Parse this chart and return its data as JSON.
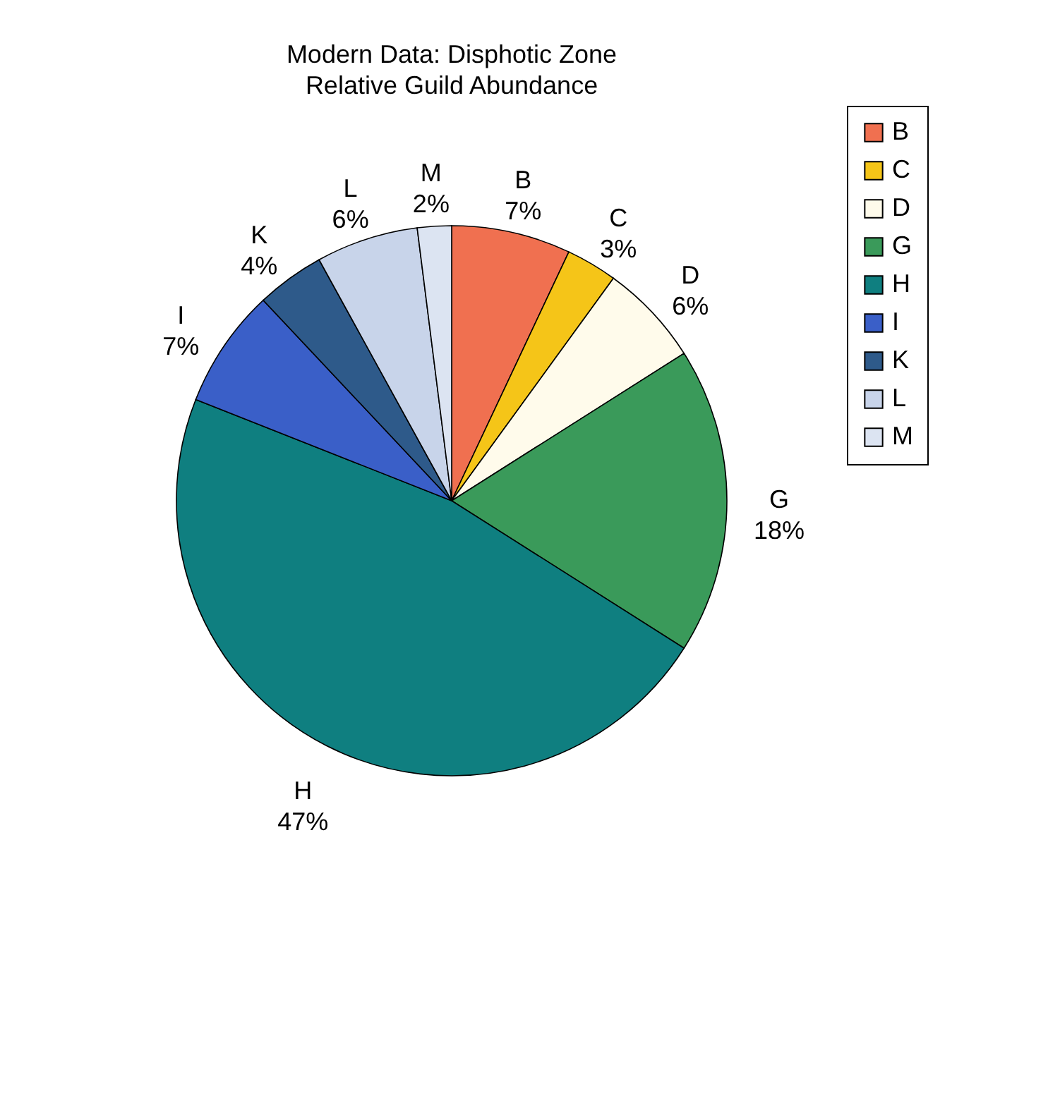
{
  "chart_data": {
    "type": "pie",
    "title": "Modern Data: Disphotic Zone",
    "subtitle": "Relative Guild Abundance",
    "categories": [
      "B",
      "C",
      "D",
      "G",
      "H",
      "I",
      "K",
      "L",
      "M"
    ],
    "values": [
      7,
      3,
      6,
      18,
      47,
      7,
      4,
      6,
      2
    ],
    "value_labels": [
      "7%",
      "3%",
      "6%",
      "18%",
      "47%",
      "7%",
      "4%",
      "6%",
      "2%"
    ],
    "colors": [
      "#f07050",
      "#f5c518",
      "#fffbeb",
      "#3a9a5a",
      "#0f7f80",
      "#3a5fc8",
      "#2e5a8a",
      "#c8d4ea",
      "#dce4f2"
    ],
    "legend": "right"
  }
}
